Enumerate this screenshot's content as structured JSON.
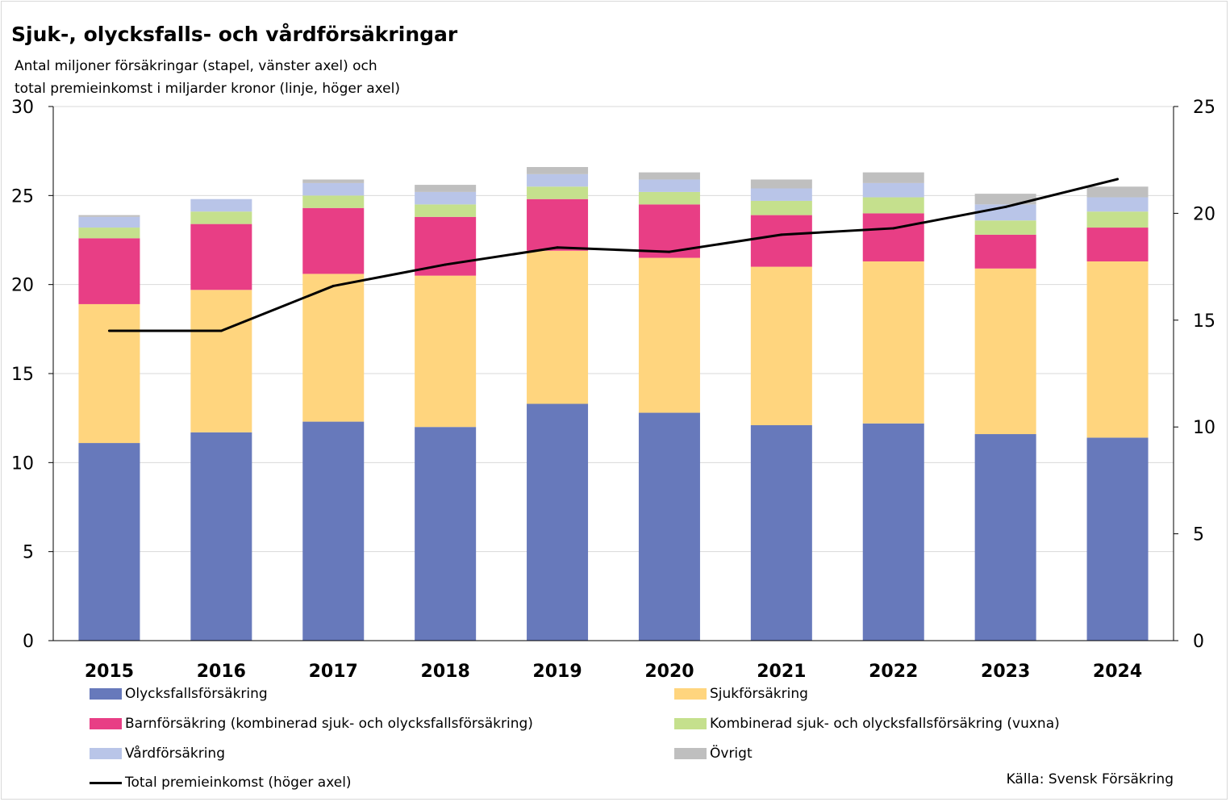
{
  "title": "Sjuk-, olycksfalls- och vårdförsäkringar",
  "subtitle_line1": "Antal miljoner försäkringar (stapel, vänster axel) och",
  "subtitle_line2": "total premieinkomst i miljarder kronor (linje, höger axel)",
  "source": "Källa: Svensk Försäkring",
  "chart_data": {
    "type": "bar",
    "stacked": true,
    "categories": [
      "2015",
      "2016",
      "2017",
      "2018",
      "2019",
      "2020",
      "2021",
      "2022",
      "2023",
      "2024"
    ],
    "ylim_left": [
      0,
      30
    ],
    "yticks_left": [
      0,
      5,
      10,
      15,
      20,
      25,
      30
    ],
    "ylim_right": [
      0,
      25
    ],
    "yticks_right": [
      0,
      5,
      10,
      15,
      20,
      25
    ],
    "grid": true,
    "legend_position": "bottom",
    "series": [
      {
        "name": "Olycksfallsförsäkring",
        "color": "#6779bb",
        "axis": "left",
        "values": [
          11.1,
          11.7,
          12.3,
          12.0,
          13.3,
          12.8,
          12.1,
          12.2,
          11.6,
          11.4
        ]
      },
      {
        "name": "Sjukförsäkring",
        "color": "#ffd57e",
        "axis": "left",
        "values": [
          7.8,
          8.0,
          8.3,
          8.5,
          8.6,
          8.7,
          8.9,
          9.1,
          9.3,
          9.9
        ]
      },
      {
        "name": "Barnförsäkring (kombinerad sjuk- och olycksfallsförsäkring)",
        "color": "#e83e85",
        "axis": "left",
        "values": [
          3.7,
          3.7,
          3.7,
          3.3,
          2.9,
          3.0,
          2.9,
          2.7,
          1.9,
          1.9
        ]
      },
      {
        "name": "Kombinerad sjuk- och olycksfallsförsäkring (vuxna)",
        "color": "#c5e08d",
        "axis": "left",
        "values": [
          0.6,
          0.7,
          0.7,
          0.7,
          0.7,
          0.7,
          0.8,
          0.9,
          0.8,
          0.9
        ]
      },
      {
        "name": "Vårdförsäkring",
        "color": "#b9c5e8",
        "axis": "left",
        "values": [
          0.6,
          0.7,
          0.7,
          0.7,
          0.7,
          0.7,
          0.7,
          0.8,
          0.9,
          0.8
        ]
      },
      {
        "name": "Övrigt",
        "color": "#bfbfbf",
        "axis": "left",
        "values": [
          0.1,
          0.0,
          0.2,
          0.4,
          0.4,
          0.4,
          0.5,
          0.6,
          0.6,
          0.6
        ]
      }
    ],
    "line_series": {
      "name": "Total premieinkomst (höger axel)",
      "color": "#000000",
      "axis": "right",
      "values": [
        14.5,
        14.5,
        16.6,
        17.6,
        18.4,
        18.2,
        19.0,
        19.3,
        20.3,
        21.6
      ]
    }
  }
}
